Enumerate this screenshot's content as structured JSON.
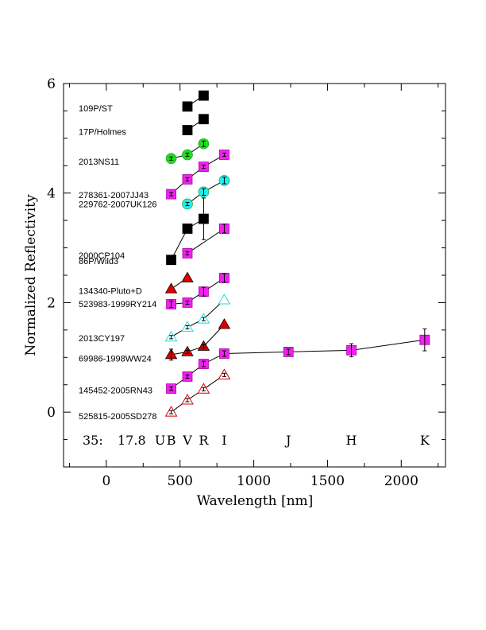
{
  "chart_data": {
    "type": "scatter",
    "xlabel": "Wavelength [nm]",
    "ylabel": "Normalized Reflectivity",
    "xlim": [
      -290,
      2300
    ],
    "ylim": [
      -1,
      6
    ],
    "xticks": [
      0,
      500,
      1000,
      1500,
      2000
    ],
    "yticks": [
      0,
      2,
      4,
      6
    ],
    "frame_label": "35:",
    "magnitude_label": "17.8",
    "bands": [
      {
        "name": "U",
        "x": 365
      },
      {
        "name": "B",
        "x": 440
      },
      {
        "name": "V",
        "x": 550
      },
      {
        "name": "R",
        "x": 660
      },
      {
        "name": "I",
        "x": 800
      },
      {
        "name": "J",
        "x": 1235
      },
      {
        "name": "H",
        "x": 1662
      },
      {
        "name": "K",
        "x": 2159
      }
    ],
    "labels": [
      {
        "text": "109P/ST",
        "y": 5.55
      },
      {
        "text": "17P/Holmes",
        "y": 5.12
      },
      {
        "text": "2013NS11",
        "y": 4.58
      },
      {
        "text": "278361-2007JJ43",
        "y": 3.97
      },
      {
        "text": "229762-2007UK126",
        "y": 3.8
      },
      {
        "text": "2000CP104",
        "y": 2.86
      },
      {
        "text": "86P/Wild3",
        "y": 2.76
      },
      {
        "text": "134340-Pluto+D",
        "y": 2.22
      },
      {
        "text": "523983-1999RY214",
        "y": 1.98
      },
      {
        "text": "2013CY197",
        "y": 1.35
      },
      {
        "text": "69986-1998WW24",
        "y": 0.98
      },
      {
        "text": "145452-2005RN43",
        "y": 0.4
      },
      {
        "text": "525815-2005SD278",
        "y": -0.07
      }
    ],
    "series": [
      {
        "name": "109P/ST",
        "marker": "square",
        "color": "#000000",
        "points": [
          {
            "x": 550,
            "y": 5.58
          },
          {
            "x": 660,
            "y": 5.78
          }
        ]
      },
      {
        "name": "17P/Holmes",
        "marker": "square",
        "color": "#000000",
        "points": [
          {
            "x": 550,
            "y": 5.15
          },
          {
            "x": 660,
            "y": 5.35
          }
        ]
      },
      {
        "name": "2013NS11",
        "marker": "circle",
        "color": "#22dd22",
        "points": [
          {
            "x": 440,
            "y": 4.63,
            "err": 0.03
          },
          {
            "x": 550,
            "y": 4.7,
            "err": 0.03
          },
          {
            "x": 660,
            "y": 4.9,
            "err": 0.05
          }
        ]
      },
      {
        "name": "278361-2007JJ43",
        "marker": "square",
        "color": "#ee22ee",
        "points": [
          {
            "x": 440,
            "y": 3.98,
            "err": 0.03
          },
          {
            "x": 550,
            "y": 4.25,
            "err": 0.03
          },
          {
            "x": 660,
            "y": 4.48,
            "err": 0.03
          },
          {
            "x": 800,
            "y": 4.7,
            "err": 0.03
          }
        ]
      },
      {
        "name": "229762-2007UK126",
        "marker": "circle",
        "color": "#22eeee",
        "points": [
          {
            "x": 550,
            "y": 3.8,
            "err": 0.03
          },
          {
            "x": 660,
            "y": 4.02,
            "err": 0.06
          },
          {
            "x": 800,
            "y": 4.23,
            "err": 0.06
          }
        ]
      },
      {
        "name": "2000CP104",
        "marker": "square",
        "color": "#000000",
        "points": [
          {
            "x": 440,
            "y": 2.78
          },
          {
            "x": 550,
            "y": 3.35
          },
          {
            "x": 660,
            "y": 3.53,
            "err": 0.38
          }
        ]
      },
      {
        "name": "86P/Wild3",
        "marker": "square",
        "color": "#ee22ee",
        "points": [
          {
            "x": 550,
            "y": 2.9,
            "err": 0.03
          },
          {
            "x": 800,
            "y": 3.35,
            "err": 0.08
          }
        ]
      },
      {
        "name": "134340-Pluto+D",
        "marker": "triangle",
        "color": "#dd0000",
        "points": [
          {
            "x": 440,
            "y": 2.25
          },
          {
            "x": 550,
            "y": 2.45
          }
        ]
      },
      {
        "name": "523983-1999RY214",
        "marker": "square",
        "color": "#ee22ee",
        "points": [
          {
            "x": 440,
            "y": 1.97,
            "err": 0.06
          },
          {
            "x": 550,
            "y": 2.0,
            "err": 0.03
          },
          {
            "x": 660,
            "y": 2.2,
            "err": 0.08
          },
          {
            "x": 800,
            "y": 2.45,
            "err": 0.08
          }
        ]
      },
      {
        "name": "2013CY197",
        "marker": "triangle-open",
        "color": "#22dddd",
        "points": [
          {
            "x": 440,
            "y": 1.37,
            "err": 0.03
          },
          {
            "x": 550,
            "y": 1.55,
            "err": 0.03
          },
          {
            "x": 660,
            "y": 1.7,
            "err": 0.03
          },
          {
            "x": 800,
            "y": 2.05
          }
        ]
      },
      {
        "name": "69986-1998WW24",
        "marker": "triangle",
        "color": "#dd0000",
        "points": [
          {
            "x": 440,
            "y": 1.05,
            "err": 0.1
          },
          {
            "x": 550,
            "y": 1.1,
            "err": 0.03
          },
          {
            "x": 660,
            "y": 1.2,
            "err": 0.03
          },
          {
            "x": 800,
            "y": 1.6
          }
        ]
      },
      {
        "name": "145452-2005RN43",
        "marker": "square",
        "color": "#ee22ee",
        "points": [
          {
            "x": 440,
            "y": 0.43,
            "err": 0.03
          },
          {
            "x": 550,
            "y": 0.65,
            "err": 0.03
          },
          {
            "x": 660,
            "y": 0.88,
            "err": 0.05
          },
          {
            "x": 800,
            "y": 1.07,
            "err": 0.05
          },
          {
            "x": 1235,
            "y": 1.1,
            "err": 0.05
          },
          {
            "x": 1662,
            "y": 1.13,
            "err": 0.12
          },
          {
            "x": 2159,
            "y": 1.32,
            "err": 0.2
          }
        ]
      },
      {
        "name": "525815-2005SD278",
        "marker": "triangle-open",
        "color": "#dd0000",
        "points": [
          {
            "x": 440,
            "y": 0.0,
            "err": 0.03
          },
          {
            "x": 550,
            "y": 0.22,
            "err": 0.03
          },
          {
            "x": 660,
            "y": 0.42,
            "err": 0.03
          },
          {
            "x": 800,
            "y": 0.68,
            "err": 0.03
          }
        ]
      }
    ]
  }
}
